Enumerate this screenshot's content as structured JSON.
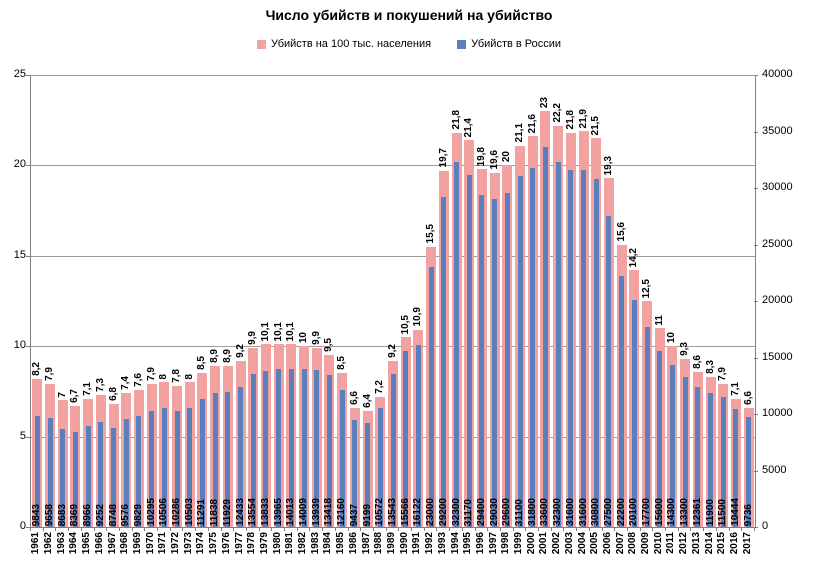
{
  "title": "Число убийств и покушений на убийство",
  "chart_data": {
    "type": "bar",
    "title": "Число убийств и покушений на убийство",
    "legend_position": "top",
    "grid": true,
    "categories": [
      "1961",
      "1962",
      "1963",
      "1964",
      "1965",
      "1966",
      "1967",
      "1968",
      "1969",
      "1970",
      "1971",
      "1972",
      "1973",
      "1974",
      "1975",
      "1976",
      "1977",
      "1978",
      "1979",
      "1980",
      "1981",
      "1982",
      "1983",
      "1984",
      "1985",
      "1986",
      "1987",
      "1988",
      "1989",
      "1990",
      "1991",
      "1992",
      "1993",
      "1994",
      "1995",
      "1996",
      "1997",
      "1998",
      "1999",
      "2000",
      "2001",
      "2002",
      "2003",
      "2004",
      "2005",
      "2006",
      "2007",
      "2008",
      "2009",
      "2010",
      "2011",
      "2012",
      "2013",
      "2014",
      "2015",
      "2016",
      "2017"
    ],
    "series": [
      {
        "name": "Убийств на 100 тыс. населения",
        "axis": "left",
        "color": "#F2A3A1",
        "values": [
          8.2,
          7.9,
          7,
          6.7,
          7.1,
          7.3,
          6.8,
          7.4,
          7.6,
          7.9,
          8,
          7.8,
          8,
          8.5,
          8.9,
          8.9,
          9.2,
          9.9,
          10.1,
          10.1,
          10.1,
          10,
          9.9,
          9.5,
          8.5,
          6.6,
          6.4,
          7.2,
          9.2,
          10.5,
          10.9,
          15.5,
          19.7,
          21.8,
          21.4,
          19.8,
          19.6,
          20,
          21.1,
          21.6,
          23,
          22.2,
          21.8,
          21.9,
          21.5,
          19.3,
          15.6,
          14.2,
          12.5,
          11,
          10,
          9.3,
          8.6,
          8.3,
          7.9,
          7.1,
          6.6
        ]
      },
      {
        "name": "Убийств в России",
        "axis": "right",
        "color": "#5B7EBD",
        "values": [
          9843,
          9658,
          8683,
          8369,
          8966,
          9252,
          8748,
          9576,
          9829,
          10295,
          10506,
          10286,
          10503,
          11291,
          11838,
          11929,
          12433,
          13554,
          13833,
          13965,
          14013,
          14009,
          13939,
          13418,
          12160,
          9437,
          9199,
          10572,
          13543,
          15566,
          16122,
          23000,
          29200,
          32300,
          31170,
          29400,
          29030,
          29600,
          31100,
          31800,
          33600,
          32300,
          31600,
          31600,
          30800,
          27500,
          22200,
          20100,
          17700,
          15600,
          14300,
          13300,
          12361,
          11900,
          11500,
          10444,
          9736
        ]
      }
    ],
    "left_axis": {
      "min": 0,
      "max": 25,
      "step": 5,
      "ticks": [
        0,
        5,
        10,
        15,
        20,
        25
      ]
    },
    "right_axis": {
      "min": 0,
      "max": 40000,
      "step": 5000,
      "ticks": [
        0,
        5000,
        10000,
        15000,
        20000,
        25000,
        30000,
        35000,
        40000
      ]
    }
  }
}
